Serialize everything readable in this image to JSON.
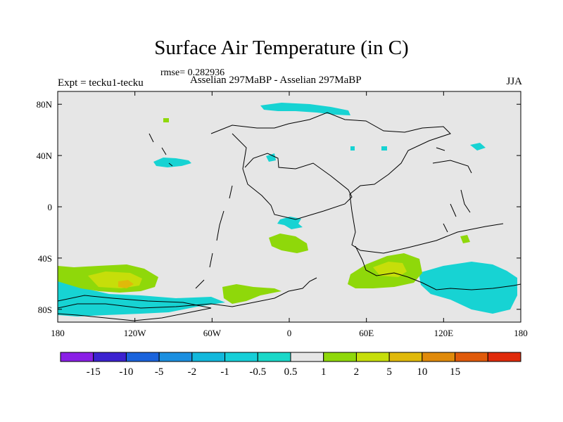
{
  "title": "Surface Air Temperature (in C)",
  "rmse_text": "rmse= 0.282936",
  "left_label": "Expt = tecku1-tecku",
  "center_label": "Asselian 297MaBP - Asselian 297MaBP",
  "right_label": "JJA",
  "map": {
    "lon_ticks": [
      {
        "value": -180,
        "label": "180"
      },
      {
        "value": -120,
        "label": "120W"
      },
      {
        "value": -60,
        "label": "60W"
      },
      {
        "value": 0,
        "label": "0"
      },
      {
        "value": 60,
        "label": "60E"
      },
      {
        "value": 120,
        "label": "120E"
      },
      {
        "value": 180,
        "label": "180"
      }
    ],
    "lat_ticks": [
      {
        "value": 80,
        "label": "80N"
      },
      {
        "value": 40,
        "label": "40N"
      },
      {
        "value": 0,
        "label": "0"
      },
      {
        "value": -40,
        "label": "40S"
      },
      {
        "value": -80,
        "label": "80S"
      }
    ],
    "background_color": "#e6e6e6"
  },
  "colorbar": {
    "colors": [
      "#8a1fe6",
      "#3c22d0",
      "#1a63dc",
      "#1b8fe0",
      "#12b8dc",
      "#16cfd8",
      "#1ad8c8",
      "#e6e6e6",
      "#8fd80a",
      "#c6de0a",
      "#e0b90a",
      "#e08a0a",
      "#e05a0a",
      "#e02a0a"
    ],
    "labels": [
      "-15",
      "-10",
      "-5",
      "-2",
      "-1",
      "-0.5",
      "0.5",
      "1",
      "2",
      "5",
      "10",
      "15"
    ]
  }
}
